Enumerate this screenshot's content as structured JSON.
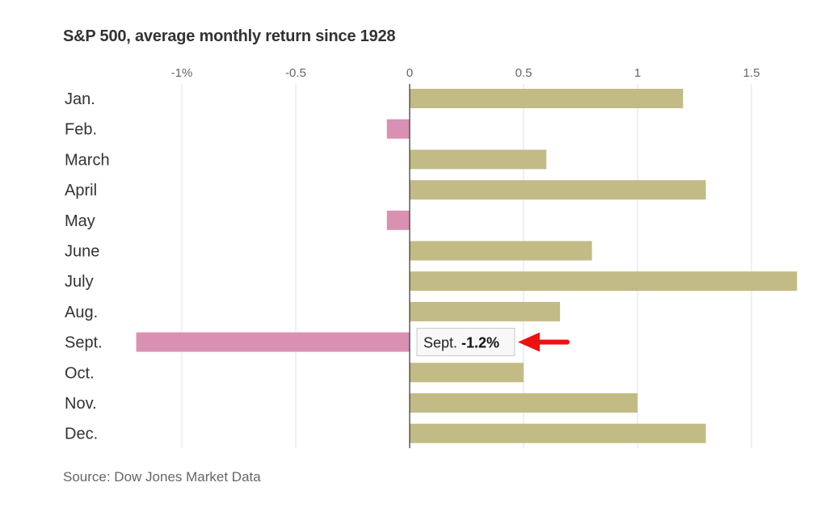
{
  "chart_data": {
    "type": "bar",
    "orientation": "horizontal",
    "title": "S&P 500, average monthly return since 1928",
    "source": "Source: Dow Jones Market Data",
    "categories": [
      "Jan.",
      "Feb.",
      "March",
      "April",
      "May",
      "June",
      "July",
      "Aug.",
      "Sept.",
      "Oct.",
      "Nov.",
      "Dec."
    ],
    "values": [
      1.2,
      -0.1,
      0.6,
      1.3,
      -0.1,
      0.8,
      1.7,
      0.66,
      -1.2,
      0.5,
      1.0,
      1.3
    ],
    "xlim": [
      -1.25,
      1.7
    ],
    "x_ticks": [
      {
        "value": -1,
        "label": "-1%"
      },
      {
        "value": -0.5,
        "label": "-0.5"
      },
      {
        "value": 0,
        "label": "0"
      },
      {
        "value": 0.5,
        "label": "0.5"
      },
      {
        "value": 1,
        "label": "1"
      },
      {
        "value": 1.5,
        "label": "1.5"
      }
    ],
    "grid": true,
    "colors": {
      "positive": "#c2bb85",
      "negative": "#d990b3",
      "grid": "#e2e2e2",
      "axis": "#333333"
    },
    "annotation": {
      "category": "Sept.",
      "month_label": "Sept.",
      "value_label": "-1.2%",
      "arrow_color": "#ee1111"
    }
  }
}
